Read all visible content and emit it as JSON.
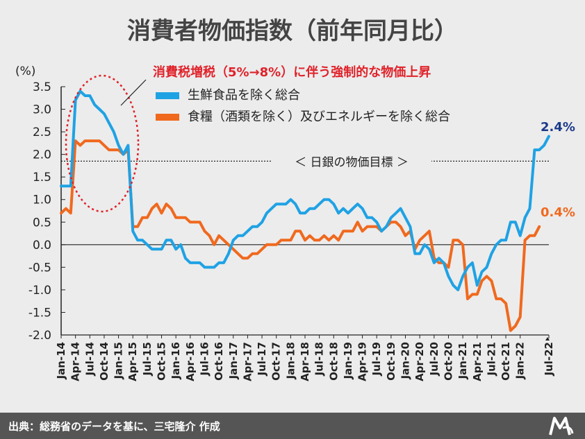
{
  "chart_data": {
    "type": "line",
    "title": "消費者物価指数（前年同月比）",
    "ylabel": "(%)",
    "ylim": [
      -2.0,
      3.5
    ],
    "yticks": [
      "3.5",
      "3.0",
      "2.5",
      "2.0",
      "1.5",
      "1.0",
      "0.5",
      "0.0",
      "-0.5",
      "-1.0",
      "-1.5",
      "-2.0"
    ],
    "xticks": [
      "Jan-14",
      "Apr-14",
      "Jul-14",
      "Oct-14",
      "Jan-15",
      "Apr-15",
      "Jul-15",
      "Oct-15",
      "Jan-16",
      "Apr-16",
      "Jul-16",
      "Oct-16",
      "Jan-17",
      "Apr-17",
      "Jul-17",
      "Oct-17",
      "Jan-18",
      "Apr-18",
      "Jul-18",
      "Oct-18",
      "Jan-19",
      "Apr-19",
      "Jul-19",
      "Oct-19",
      "Jan-20",
      "Apr-20",
      "Jul-20",
      "Oct-20",
      "Jan-21",
      "Apr-21",
      "Jul-21",
      "Oct-21",
      "Jan-22",
      "Jul-22"
    ],
    "x_start": "Jan-14",
    "series": [
      {
        "name": "生鮮食品を除く総合",
        "color": "#1fa2e4",
        "values": [
          1.3,
          1.3,
          1.3,
          3.2,
          3.4,
          3.3,
          3.3,
          3.1,
          3.0,
          2.9,
          2.7,
          2.5,
          2.2,
          2.0,
          2.2,
          0.3,
          0.1,
          0.1,
          0.0,
          -0.1,
          -0.1,
          -0.1,
          0.1,
          0.1,
          -0.1,
          0.0,
          -0.3,
          -0.4,
          -0.4,
          -0.4,
          -0.5,
          -0.5,
          -0.5,
          -0.4,
          -0.4,
          -0.2,
          0.1,
          0.2,
          0.2,
          0.3,
          0.4,
          0.4,
          0.5,
          0.7,
          0.8,
          0.9,
          0.9,
          0.9,
          1.0,
          0.9,
          0.7,
          0.7,
          0.8,
          0.8,
          0.9,
          1.0,
          1.0,
          0.9,
          0.7,
          0.8,
          0.7,
          0.8,
          0.9,
          0.8,
          0.6,
          0.6,
          0.5,
          0.3,
          0.4,
          0.6,
          0.7,
          0.8,
          0.6,
          0.4,
          -0.2,
          -0.2,
          0.0,
          -0.1,
          -0.4,
          -0.3,
          -0.4,
          -0.7,
          -0.9,
          -1.0,
          -0.7,
          -0.5,
          -0.4,
          -0.9,
          -0.6,
          -0.5,
          -0.2,
          0.0,
          0.1,
          0.1,
          0.5,
          0.5,
          0.2,
          0.6,
          0.8,
          2.1,
          2.1,
          2.2,
          2.4
        ]
      },
      {
        "name": "食糧（酒類を除く）及びエネルギーを除く総合",
        "color": "#f0691e",
        "values": [
          0.7,
          0.8,
          0.7,
          2.3,
          2.2,
          2.3,
          2.3,
          2.3,
          2.3,
          2.2,
          2.1,
          2.1,
          2.1,
          2.0,
          2.1,
          0.4,
          0.4,
          0.6,
          0.6,
          0.8,
          0.9,
          0.7,
          0.9,
          0.8,
          0.6,
          0.6,
          0.6,
          0.5,
          0.5,
          0.5,
          0.3,
          0.2,
          0.0,
          0.2,
          0.1,
          0.0,
          -0.1,
          -0.2,
          -0.3,
          -0.3,
          -0.2,
          -0.2,
          -0.1,
          0.0,
          0.0,
          0.0,
          0.1,
          0.1,
          0.1,
          0.3,
          0.3,
          0.1,
          0.2,
          0.1,
          0.1,
          0.2,
          0.1,
          0.2,
          0.1,
          0.3,
          0.3,
          0.3,
          0.5,
          0.3,
          0.4,
          0.4,
          0.4,
          0.3,
          0.4,
          0.5,
          0.5,
          0.4,
          0.2,
          0.3,
          -0.1,
          0.1,
          0.2,
          0.3,
          -0.3,
          -0.4,
          -0.4,
          -0.5,
          0.1,
          0.1,
          0.0,
          -1.2,
          -1.1,
          -1.1,
          -0.8,
          -0.7,
          -0.8,
          -1.2,
          -1.2,
          -1.3,
          -1.9,
          -1.8,
          -1.6,
          0.1,
          0.2,
          0.2,
          0.4
        ]
      }
    ],
    "end_labels": [
      "2.4%",
      "0.4%"
    ],
    "reference_line": {
      "y": 1.85,
      "label": "＜ 日銀の物価目標 ＞"
    },
    "annotation": "消費税増税（5%→8%）に伴う強制的な物価上昇",
    "grid": false,
    "legend_position": "top-center"
  },
  "footer": {
    "source": "出典：総務省のデータを基に、三宅隆介 作成",
    "logo_icon": "brand-logo-icon"
  },
  "colors": {
    "background": "#ececec",
    "footer_bg": "#555555",
    "annotation": "#e0222a"
  }
}
